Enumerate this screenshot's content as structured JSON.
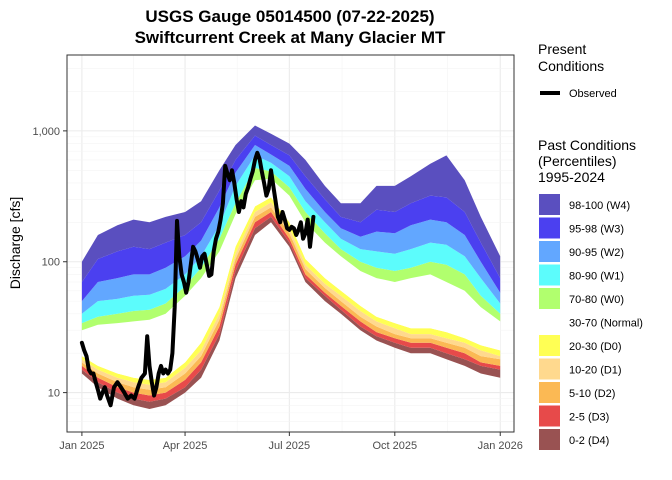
{
  "chart_data": {
    "type": "area",
    "title": "USGS Gauge 05014500 (07-22-2025)",
    "subtitle": "Swiftcurrent Creek at Many Glacier MT",
    "xlabel": "",
    "ylabel": "Discharge [cfs]",
    "y_scale": "log",
    "ylim": [
      5,
      3800
    ],
    "xlim": [
      "2024-12-19",
      "2026-01-13"
    ],
    "grid": true,
    "legend_placement": "right",
    "x_ticks": [
      {
        "date": "2025-01-01",
        "label": "Jan 2025"
      },
      {
        "date": "2025-04-01",
        "label": "Apr 2025"
      },
      {
        "date": "2025-07-01",
        "label": "Jul 2025"
      },
      {
        "date": "2025-10-01",
        "label": "Oct 2025"
      },
      {
        "date": "2026-01-01",
        "label": "Jan 2026"
      }
    ],
    "y_ticks": [
      {
        "value": 10,
        "label": "10"
      },
      {
        "value": 100,
        "label": "100"
      },
      {
        "value": 1000,
        "label": "1,000"
      }
    ],
    "dates": [
      "2025-01-01",
      "2025-01-15",
      "2025-02-01",
      "2025-02-15",
      "2025-03-01",
      "2025-03-15",
      "2025-04-01",
      "2025-04-15",
      "2025-05-01",
      "2025-05-15",
      "2025-06-01",
      "2025-06-15",
      "2025-07-01",
      "2025-07-15",
      "2025-08-01",
      "2025-08-15",
      "2025-09-01",
      "2025-09-15",
      "2025-10-01",
      "2025-10-15",
      "2025-11-01",
      "2025-11-15",
      "2025-12-01",
      "2025-12-15",
      "2026-01-01"
    ],
    "percentile_bands": {
      "p0": [
        14,
        11,
        9,
        8,
        7.5,
        8,
        10,
        13,
        25,
        75,
        160,
        200,
        130,
        70,
        50,
        40,
        30,
        25,
        22,
        20,
        20,
        18,
        16,
        14,
        13
      ],
      "p2": [
        15,
        12,
        10,
        9,
        8.5,
        9,
        11,
        15,
        28,
        85,
        180,
        220,
        140,
        75,
        55,
        43,
        32,
        27,
        24,
        22,
        22,
        20,
        18,
        16,
        15
      ],
      "p5": [
        16,
        13,
        11,
        10,
        9.5,
        10,
        12.5,
        17,
        32,
        95,
        200,
        240,
        150,
        80,
        58,
        46,
        35,
        29,
        26,
        24,
        24,
        22,
        20,
        17,
        16
      ],
      "p10": [
        17,
        14,
        12,
        11,
        10.5,
        11,
        14,
        19,
        36,
        105,
        220,
        260,
        165,
        88,
        63,
        50,
        38,
        32,
        28,
        26,
        26,
        24,
        22,
        19,
        18
      ],
      "p20": [
        18,
        15,
        13,
        12,
        11.5,
        12,
        15.5,
        21,
        40,
        115,
        240,
        285,
        180,
        95,
        68,
        55,
        42,
        35,
        31,
        28,
        28,
        26,
        24,
        21,
        19
      ],
      "p30": [
        19,
        16,
        14,
        13,
        12.5,
        13,
        17,
        24,
        45,
        130,
        265,
        310,
        200,
        105,
        75,
        60,
        46,
        38,
        34,
        31,
        31,
        29,
        26,
        23,
        21
      ],
      "p70": [
        30,
        33,
        34,
        35,
        36,
        40,
        55,
        75,
        120,
        230,
        420,
        430,
        320,
        200,
        140,
        110,
        85,
        75,
        70,
        75,
        80,
        70,
        60,
        45,
        35
      ],
      "p80": [
        34,
        38,
        40,
        42,
        43,
        48,
        65,
        90,
        150,
        280,
        520,
        490,
        370,
        240,
        165,
        125,
        100,
        90,
        85,
        90,
        100,
        95,
        80,
        55,
        40
      ],
      "p90": [
        40,
        50,
        52,
        55,
        56,
        62,
        80,
        110,
        190,
        380,
        650,
        570,
        450,
        290,
        200,
        150,
        125,
        120,
        115,
        125,
        140,
        135,
        110,
        75,
        48
      ],
      "p95": [
        50,
        70,
        75,
        80,
        80,
        90,
        110,
        145,
        260,
        480,
        780,
        660,
        540,
        360,
        240,
        180,
        155,
        170,
        165,
        190,
        210,
        200,
        160,
        100,
        58
      ],
      "p98": [
        70,
        105,
        120,
        130,
        125,
        140,
        160,
        200,
        350,
        600,
        920,
        780,
        650,
        450,
        300,
        220,
        200,
        250,
        240,
        280,
        320,
        310,
        240,
        140,
        75
      ],
      "p100": [
        100,
        160,
        190,
        210,
        200,
        220,
        240,
        290,
        500,
        780,
        1100,
        950,
        800,
        600,
        380,
        280,
        280,
        380,
        380,
        450,
        560,
        650,
        420,
        220,
        110
      ]
    },
    "series": [
      {
        "name": "Observed",
        "color": "#000000",
        "points": [
          [
            "2025-01-01",
            24
          ],
          [
            "2025-01-03",
            21
          ],
          [
            "2025-01-05",
            19
          ],
          [
            "2025-01-07",
            15
          ],
          [
            "2025-01-09",
            14
          ],
          [
            "2025-01-11",
            14
          ],
          [
            "2025-01-13",
            12
          ],
          [
            "2025-01-15",
            10.5
          ],
          [
            "2025-01-17",
            9
          ],
          [
            "2025-01-19",
            10
          ],
          [
            "2025-01-21",
            11
          ],
          [
            "2025-01-23",
            9.5
          ],
          [
            "2025-01-26",
            8
          ],
          [
            "2025-01-29",
            11
          ],
          [
            "2025-02-01",
            12
          ],
          [
            "2025-02-04",
            11
          ],
          [
            "2025-02-07",
            10
          ],
          [
            "2025-02-10",
            9
          ],
          [
            "2025-02-13",
            9.5
          ],
          [
            "2025-02-16",
            9
          ],
          [
            "2025-02-19",
            11
          ],
          [
            "2025-02-22",
            13
          ],
          [
            "2025-02-25",
            14
          ],
          [
            "2025-02-27",
            27
          ],
          [
            "2025-03-01",
            16
          ],
          [
            "2025-03-03",
            12
          ],
          [
            "2025-03-05",
            9.5
          ],
          [
            "2025-03-07",
            11
          ],
          [
            "2025-03-09",
            14
          ],
          [
            "2025-03-11",
            16
          ],
          [
            "2025-03-13",
            14
          ],
          [
            "2025-03-15",
            15
          ],
          [
            "2025-03-17",
            14
          ],
          [
            "2025-03-19",
            15
          ],
          [
            "2025-03-21",
            20
          ],
          [
            "2025-03-23",
            45
          ],
          [
            "2025-03-25",
            205
          ],
          [
            "2025-03-27",
            110
          ],
          [
            "2025-03-29",
            80
          ],
          [
            "2025-03-31",
            70
          ],
          [
            "2025-04-02",
            58
          ],
          [
            "2025-04-04",
            70
          ],
          [
            "2025-04-06",
            95
          ],
          [
            "2025-04-08",
            130
          ],
          [
            "2025-04-10",
            120
          ],
          [
            "2025-04-12",
            105
          ],
          [
            "2025-04-14",
            90
          ],
          [
            "2025-04-16",
            110
          ],
          [
            "2025-04-18",
            115
          ],
          [
            "2025-04-20",
            95
          ],
          [
            "2025-04-22",
            78
          ],
          [
            "2025-04-24",
            80
          ],
          [
            "2025-04-26",
            120
          ],
          [
            "2025-04-28",
            150
          ],
          [
            "2025-04-30",
            170
          ],
          [
            "2025-05-02",
            210
          ],
          [
            "2025-05-04",
            280
          ],
          [
            "2025-05-06",
            540
          ],
          [
            "2025-05-08",
            470
          ],
          [
            "2025-05-10",
            420
          ],
          [
            "2025-05-12",
            500
          ],
          [
            "2025-05-14",
            400
          ],
          [
            "2025-05-16",
            300
          ],
          [
            "2025-05-18",
            240
          ],
          [
            "2025-05-20",
            290
          ],
          [
            "2025-05-22",
            260
          ],
          [
            "2025-05-24",
            330
          ],
          [
            "2025-05-26",
            370
          ],
          [
            "2025-05-28",
            430
          ],
          [
            "2025-05-30",
            490
          ],
          [
            "2025-06-01",
            600
          ],
          [
            "2025-06-03",
            680
          ],
          [
            "2025-06-05",
            610
          ],
          [
            "2025-06-07",
            490
          ],
          [
            "2025-06-09",
            400
          ],
          [
            "2025-06-11",
            320
          ],
          [
            "2025-06-13",
            360
          ],
          [
            "2025-06-15",
            500
          ],
          [
            "2025-06-17",
            380
          ],
          [
            "2025-06-19",
            290
          ],
          [
            "2025-06-21",
            220
          ],
          [
            "2025-06-23",
            200
          ],
          [
            "2025-06-25",
            240
          ],
          [
            "2025-06-27",
            210
          ],
          [
            "2025-06-29",
            180
          ],
          [
            "2025-07-01",
            175
          ],
          [
            "2025-07-03",
            185
          ],
          [
            "2025-07-05",
            180
          ],
          [
            "2025-07-07",
            160
          ],
          [
            "2025-07-09",
            175
          ],
          [
            "2025-07-11",
            200
          ],
          [
            "2025-07-13",
            150
          ],
          [
            "2025-07-15",
            165
          ],
          [
            "2025-07-17",
            210
          ],
          [
            "2025-07-19",
            130
          ],
          [
            "2025-07-22",
            220
          ]
        ]
      }
    ],
    "legend": {
      "present_title": "Present\nConditions",
      "observed_label": "Observed",
      "past_title": "Past Conditions\n(Percentiles)\n1995-2024",
      "past_items": [
        {
          "label": "98-100 (W4)",
          "color": "#5a4fbf"
        },
        {
          "label": "95-98 (W3)",
          "color": "#4b40f0"
        },
        {
          "label": "90-95 (W2)",
          "color": "#62a7ff"
        },
        {
          "label": "80-90 (W1)",
          "color": "#5cfcfc"
        },
        {
          "label": "70-80 (W0)",
          "color": "#b1ff6e"
        },
        {
          "label": "30-70 (Normal)",
          "color": "#ffffff"
        },
        {
          "label": "20-30 (D0)",
          "color": "#ffff54"
        },
        {
          "label": "10-20 (D1)",
          "color": "#ffd98e"
        },
        {
          "label": "5-10 (D2)",
          "color": "#fbb954"
        },
        {
          "label": "2-5 (D3)",
          "color": "#e74a4a"
        },
        {
          "label": "0-2 (D4)",
          "color": "#995252"
        }
      ]
    }
  }
}
